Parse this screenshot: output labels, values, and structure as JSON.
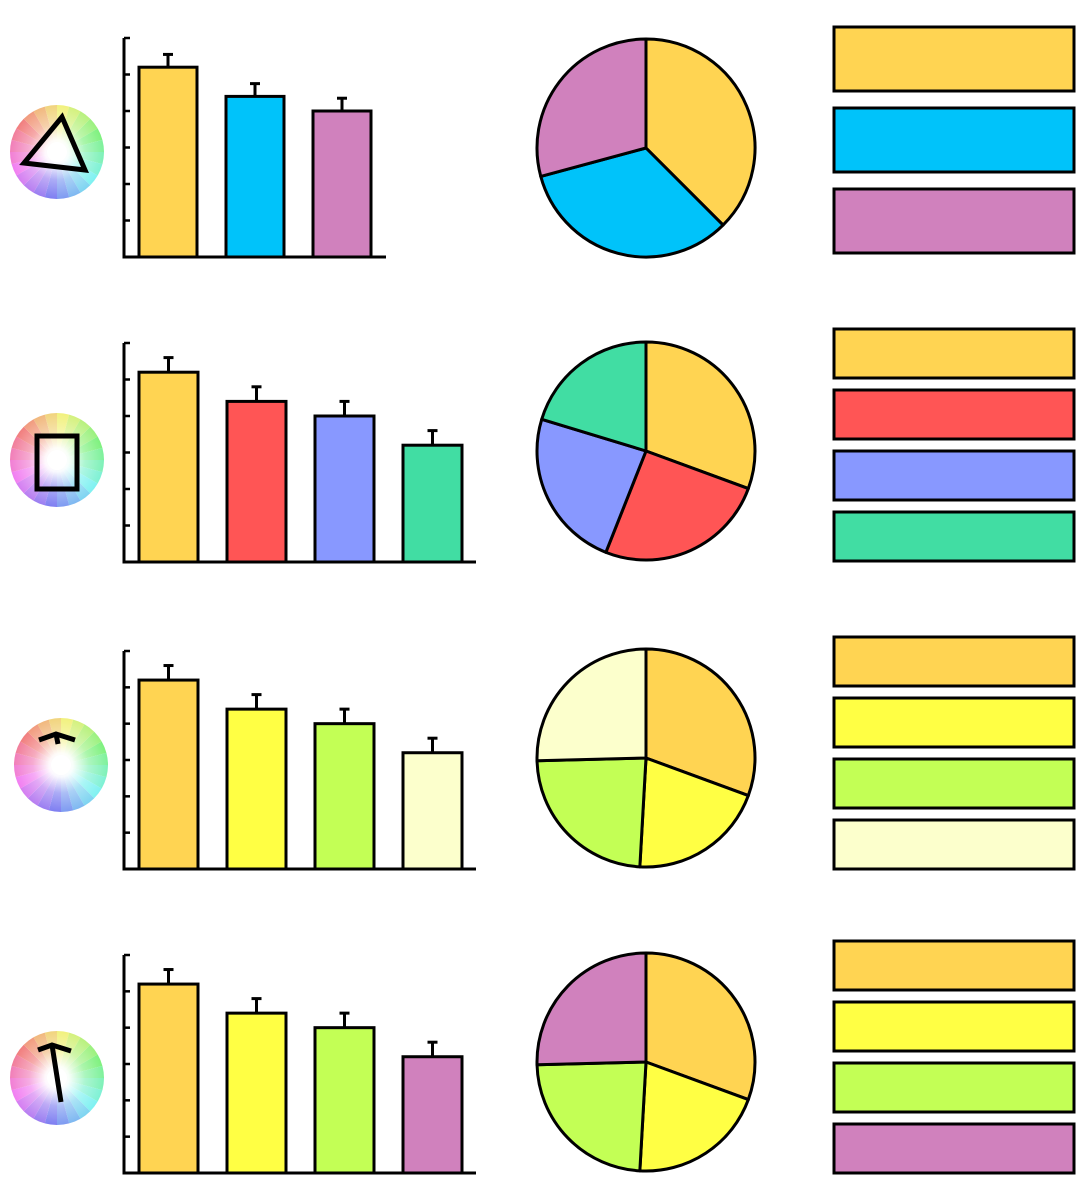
{
  "palette_schemes": [
    {
      "scheme_icon": "triangle-icon",
      "colors": [
        "#FFD452",
        "#00C3FA",
        "#D081BD"
      ],
      "chart_data": {
        "type": "bar",
        "categories": [
          "",
          "",
          ""
        ],
        "values": [
          5.2,
          4.4,
          4.0
        ],
        "errors": [
          0.35,
          0.35,
          0.35
        ],
        "ylim": [
          0,
          6
        ],
        "yticks": [
          0,
          1,
          2,
          3,
          4,
          5,
          6
        ],
        "grid": false
      },
      "pie_data": {
        "type": "pie",
        "values": [
          37.5,
          33.3,
          29.2
        ]
      }
    },
    {
      "scheme_icon": "rectangle-icon",
      "colors": [
        "#FFD452",
        "#FF5555",
        "#8898FF",
        "#41DDA3"
      ],
      "chart_data": {
        "type": "bar",
        "categories": [
          "",
          "",
          "",
          ""
        ],
        "values": [
          5.2,
          4.4,
          4.0,
          3.2
        ],
        "errors": [
          0.4,
          0.4,
          0.4,
          0.4
        ],
        "ylim": [
          0,
          6
        ],
        "yticks": [
          0,
          1,
          2,
          3,
          4,
          5,
          6
        ],
        "grid": false
      },
      "pie_data": {
        "type": "pie",
        "values": [
          30.6,
          25.4,
          23.7,
          20.3
        ]
      }
    },
    {
      "scheme_icon": "analogous-arrow-icon",
      "colors": [
        "#FFD452",
        "#FFFF44",
        "#C3FF55",
        "#FCFFCC"
      ],
      "chart_data": {
        "type": "bar",
        "categories": [
          "",
          "",
          "",
          ""
        ],
        "values": [
          5.2,
          4.4,
          4.0,
          3.2
        ],
        "errors": [
          0.4,
          0.4,
          0.4,
          0.4
        ],
        "ylim": [
          0,
          6
        ],
        "yticks": [
          0,
          1,
          2,
          3,
          4,
          5,
          6
        ],
        "grid": false
      },
      "pie_data": {
        "type": "pie",
        "values": [
          30.6,
          20.3,
          23.7,
          25.4
        ]
      }
    },
    {
      "scheme_icon": "accented-analogous-icon",
      "colors": [
        "#FFD452",
        "#FFFF44",
        "#C3FF55",
        "#D081BD"
      ],
      "chart_data": {
        "type": "bar",
        "categories": [
          "",
          "",
          "",
          ""
        ],
        "values": [
          5.2,
          4.4,
          4.0,
          3.2
        ],
        "errors": [
          0.4,
          0.4,
          0.4,
          0.4
        ],
        "ylim": [
          0,
          6
        ],
        "yticks": [
          0,
          1,
          2,
          3,
          4,
          5,
          6
        ],
        "grid": false
      },
      "pie_data": {
        "type": "pie",
        "values": [
          30.6,
          20.3,
          23.7,
          25.4
        ]
      }
    }
  ]
}
